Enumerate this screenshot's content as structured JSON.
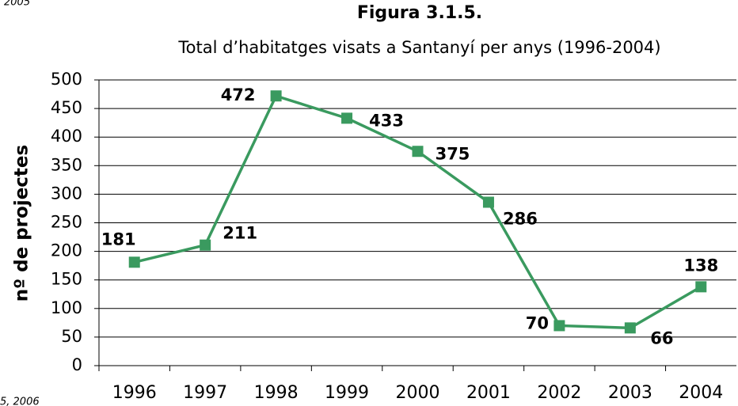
{
  "chart_data": {
    "type": "line",
    "title": "Figura 3.1.5.",
    "subtitle": "Total d’habitatges visats a Santanyí per anys (1996-2004)",
    "y_label": "nº de projectes",
    "fragments": [
      "2005",
      "5, 2006"
    ],
    "categories": [
      "1996",
      "1997",
      "1998",
      "1999",
      "2000",
      "2001",
      "2002",
      "2003",
      "2004"
    ],
    "series": [
      {
        "name": "nº de projectes",
        "color": "#3a9a5f",
        "values": [
          181,
          211,
          472,
          433,
          375,
          286,
          70,
          66,
          138
        ]
      }
    ],
    "ylim": [
      0,
      500
    ],
    "yticks": [
      0,
      50,
      100,
      150,
      200,
      250,
      300,
      350,
      400,
      450,
      500
    ],
    "grid": true
  }
}
